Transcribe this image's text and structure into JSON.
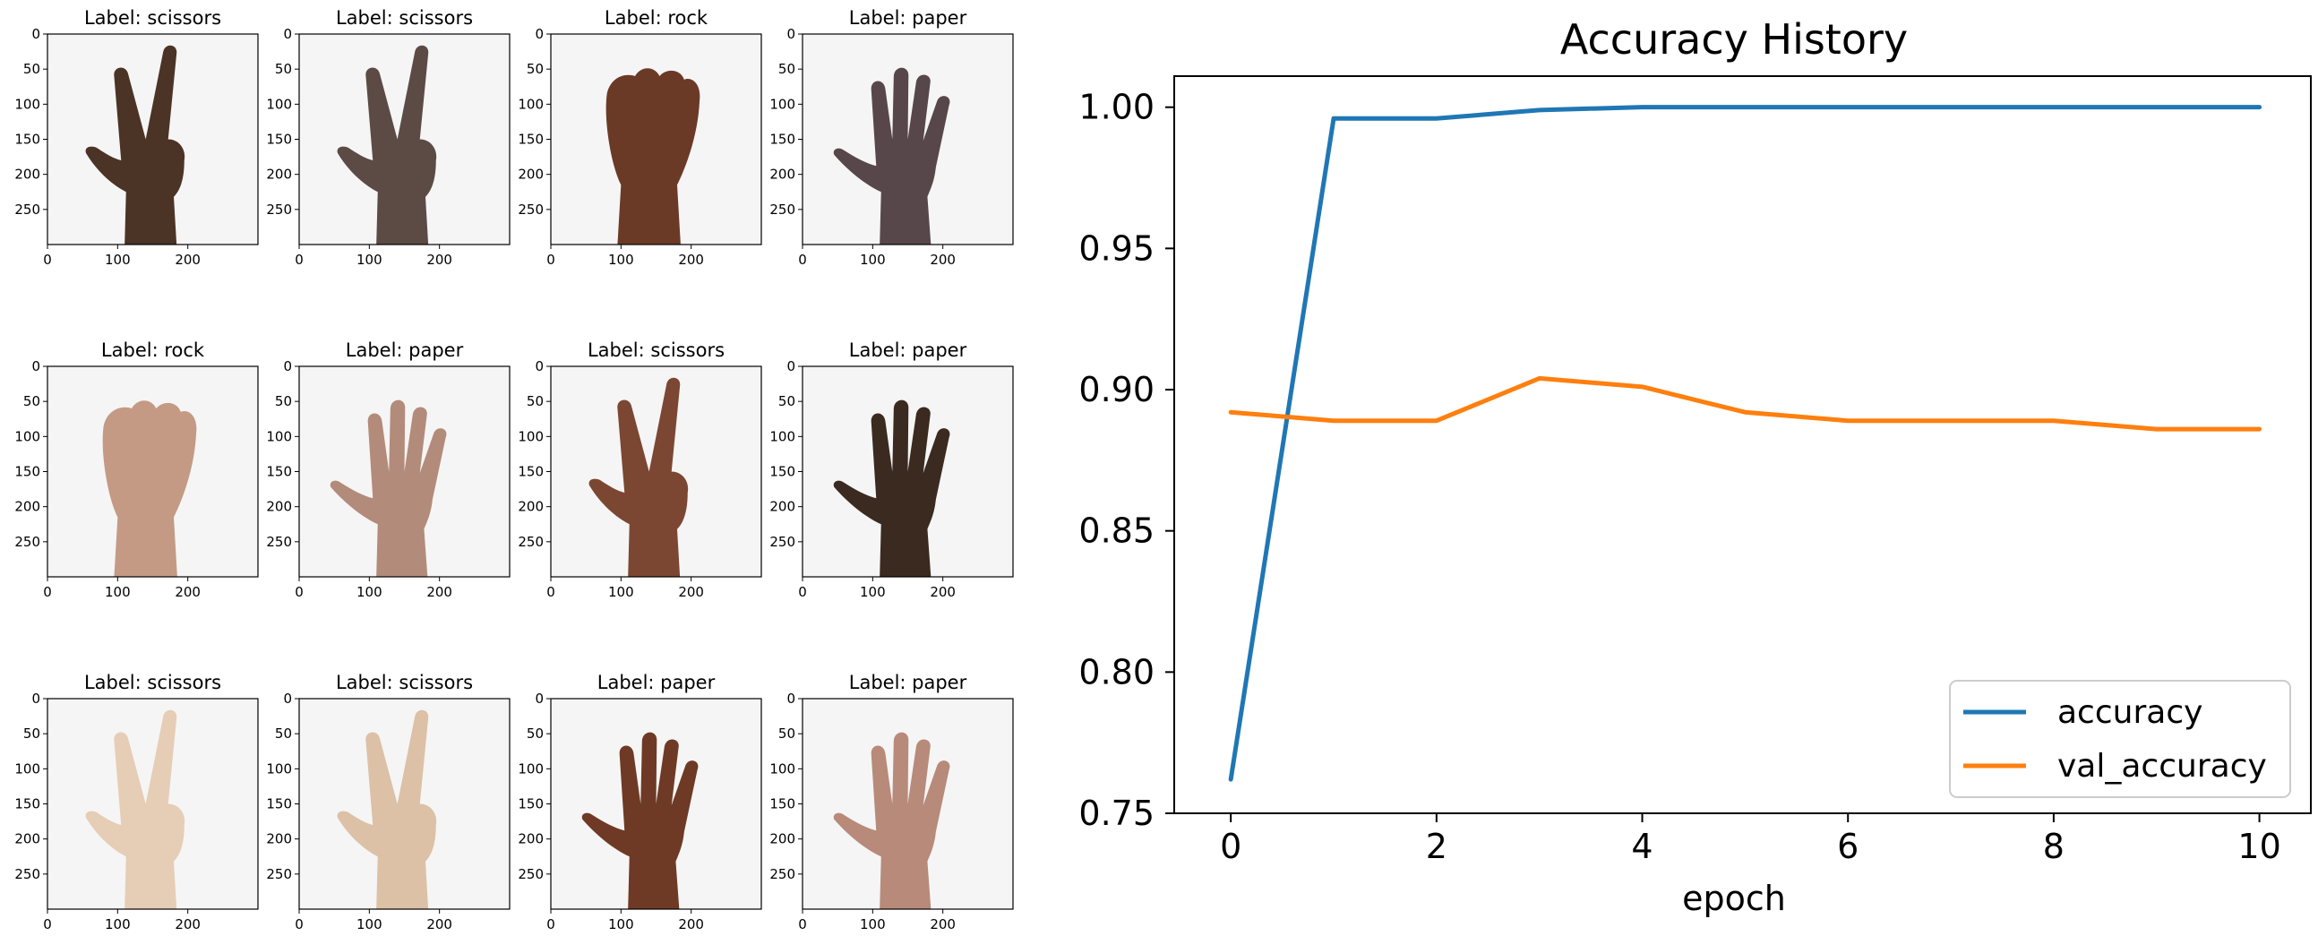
{
  "image_grid": {
    "panels": [
      {
        "label": "Label: scissors",
        "gesture": "scissors",
        "skin": "#4b3326"
      },
      {
        "label": "Label: scissors",
        "gesture": "scissors",
        "skin": "#5c4a45"
      },
      {
        "label": "Label: rock",
        "gesture": "rock",
        "skin": "#6b3a26"
      },
      {
        "label": "Label: paper",
        "gesture": "paper",
        "skin": "#58474a"
      },
      {
        "label": "Label: rock",
        "gesture": "rock",
        "skin": "#c49a85"
      },
      {
        "label": "Label: paper",
        "gesture": "paper",
        "skin": "#b38b7a"
      },
      {
        "label": "Label: scissors",
        "gesture": "scissors",
        "skin": "#7b4733"
      },
      {
        "label": "Label: paper",
        "gesture": "paper",
        "skin": "#3a2a20"
      },
      {
        "label": "Label: scissors",
        "gesture": "scissors",
        "skin": "#e6cdb5"
      },
      {
        "label": "Label: scissors",
        "gesture": "scissors",
        "skin": "#dcc1a6"
      },
      {
        "label": "Label: paper",
        "gesture": "paper",
        "skin": "#6e3a25"
      },
      {
        "label": "Label: paper",
        "gesture": "paper",
        "skin": "#b88a7a"
      }
    ],
    "x_ticks": [
      "0",
      "100",
      "200"
    ],
    "y_ticks": [
      "0",
      "50",
      "100",
      "150",
      "200",
      "250"
    ]
  },
  "chart_data": {
    "type": "line",
    "title": "Accuracy History",
    "xlabel": "epoch",
    "ylabel": "",
    "x": [
      0,
      1,
      2,
      3,
      4,
      5,
      6,
      7,
      8,
      9,
      10
    ],
    "series": [
      {
        "name": "accuracy",
        "color": "#1f77b4",
        "values": [
          0.762,
          0.996,
          0.996,
          0.999,
          1.0,
          1.0,
          1.0,
          1.0,
          1.0,
          1.0,
          1.0
        ]
      },
      {
        "name": "val_accuracy",
        "color": "#ff7f0e",
        "values": [
          0.892,
          0.889,
          0.889,
          0.904,
          0.901,
          0.892,
          0.889,
          0.889,
          0.889,
          0.886,
          0.886
        ]
      }
    ],
    "xlim": [
      -0.55,
      10.5
    ],
    "ylim": [
      0.75,
      1.011
    ],
    "x_ticks": [
      "0",
      "2",
      "4",
      "6",
      "8",
      "10"
    ],
    "y_ticks": [
      "0.75",
      "0.80",
      "0.85",
      "0.90",
      "0.95",
      "1.00"
    ],
    "legend_position": "lower right",
    "grid": false
  }
}
